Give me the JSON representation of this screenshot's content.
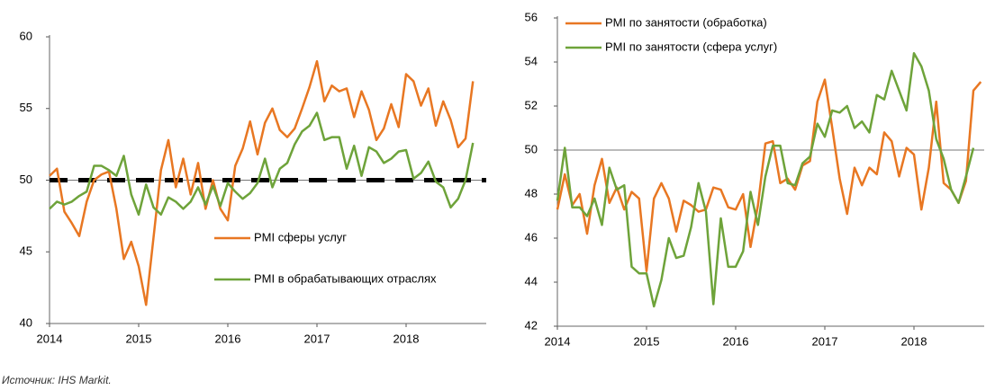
{
  "chart_data": [
    {
      "type": "line",
      "categories": [
        "2014",
        null,
        null,
        null,
        null,
        null,
        null,
        null,
        null,
        null,
        null,
        null,
        "2015",
        null,
        null,
        null,
        null,
        null,
        null,
        null,
        null,
        null,
        null,
        null,
        "2016",
        null,
        null,
        null,
        null,
        null,
        null,
        null,
        null,
        null,
        null,
        null,
        "2017",
        null,
        null,
        null,
        null,
        null,
        null,
        null,
        null,
        null,
        null,
        null,
        "2018",
        null,
        null,
        null,
        null,
        null,
        null,
        null,
        null,
        null
      ],
      "series": [
        {
          "name": "PMI сферы услуг",
          "color": "#e87722",
          "values": [
            50.3,
            50.8,
            47.8,
            47,
            46.1,
            48.5,
            50,
            50.4,
            50.6,
            48,
            44.5,
            45.7,
            44,
            41.3,
            46,
            50.7,
            52.8,
            49.5,
            51.5,
            49,
            51.2,
            48,
            50,
            48,
            47.2,
            51,
            52.2,
            54.1,
            51.8,
            54,
            55,
            53.5,
            53,
            53.6,
            55,
            56.5,
            58.3,
            55.5,
            56.6,
            56.2,
            56.4,
            54.4,
            56.2,
            54.9,
            52.8,
            53.6,
            55.3,
            53.7,
            57.4,
            56.9,
            55.2,
            56.4,
            53.8,
            55.5,
            54.2,
            52.3,
            52.9,
            56.9
          ]
        },
        {
          "name": "PMI в обрабатывающих отраслях",
          "color": "#6ea33a",
          "values": [
            48,
            48.5,
            48.3,
            48.5,
            48.9,
            49.2,
            51,
            51,
            50.7,
            50.3,
            51.7,
            49,
            47.6,
            49.7,
            48.1,
            47.6,
            48.8,
            48.5,
            48,
            48.5,
            49.5,
            48.3,
            49.6,
            48.2,
            49.8,
            49.2,
            48.7,
            49.1,
            49.8,
            51.5,
            49.5,
            50.8,
            51.2,
            52.5,
            53.4,
            53.8,
            54.7,
            52.8,
            53,
            53,
            50.8,
            52.4,
            50.3,
            52.3,
            52,
            51.2,
            51.5,
            52,
            52.1,
            50.1,
            50.5,
            51.3,
            49.9,
            49.5,
            48.1,
            48.7,
            50,
            52.6
          ]
        }
      ],
      "ylim": [
        40,
        60
      ],
      "yticks": [
        40,
        45,
        50,
        55,
        60
      ],
      "hline": 50,
      "reference_line": 50,
      "legend": "lower center"
    },
    {
      "type": "line",
      "categories": [
        "2014",
        null,
        null,
        null,
        null,
        null,
        null,
        null,
        null,
        null,
        null,
        null,
        "2015",
        null,
        null,
        null,
        null,
        null,
        null,
        null,
        null,
        null,
        null,
        null,
        "2016",
        null,
        null,
        null,
        null,
        null,
        null,
        null,
        null,
        null,
        null,
        null,
        "2017",
        null,
        null,
        null,
        null,
        null,
        null,
        null,
        null,
        null,
        null,
        null,
        "2018",
        null,
        null,
        null,
        null,
        null,
        null,
        null,
        null,
        null
      ],
      "series": [
        {
          "name": "PMI по занятости (обработка)",
          "color": "#e87722",
          "values": [
            47.3,
            48.9,
            47.5,
            48,
            46.2,
            48.4,
            49.6,
            47.6,
            48.3,
            47.3,
            48.1,
            47.8,
            44.5,
            47.8,
            48.5,
            47.8,
            46.3,
            47.7,
            47.5,
            47.2,
            47.3,
            48.3,
            48.2,
            47.4,
            47.3,
            48,
            45.6,
            47.5,
            50.3,
            50.4,
            48.5,
            48.7,
            48.2,
            49.3,
            49.5,
            52.2,
            53.2,
            51,
            48.7,
            47.1,
            49.2,
            48.4,
            49.2,
            48.9,
            50.8,
            50.4,
            48.8,
            50.1,
            49.8,
            47.3,
            49.2,
            52.2,
            48.5,
            48.2,
            47.6,
            48.6,
            52.7,
            53.1
          ]
        },
        {
          "name": "PMI по занятости (сфера услуг)",
          "color": "#6ea33a",
          "values": [
            47.7,
            50.1,
            47.4,
            47.4,
            47,
            47.8,
            46.6,
            49.2,
            48.2,
            48.4,
            44.7,
            44.4,
            44.4,
            42.9,
            44.1,
            46,
            45.1,
            45.2,
            46.5,
            48.5,
            47.2,
            43,
            46.9,
            44.7,
            44.7,
            45.4,
            48.1,
            46.6,
            48.8,
            50.2,
            50.2,
            48.5,
            48.4,
            49.4,
            49.7,
            51.2,
            50.6,
            51.8,
            51.7,
            52,
            51,
            51.3,
            50.8,
            52.5,
            52.3,
            53.6,
            52.7,
            51.8,
            54.4,
            53.8,
            52.7,
            50.5,
            49.6,
            48.2,
            47.6,
            48.8,
            50.1,
            null
          ]
        }
      ],
      "ylim": [
        42,
        56
      ],
      "yticks": [
        42,
        44,
        46,
        48,
        50,
        52,
        54,
        56
      ],
      "hline": 50,
      "legend": "upper left"
    }
  ],
  "source": "Источник: IHS Markit."
}
